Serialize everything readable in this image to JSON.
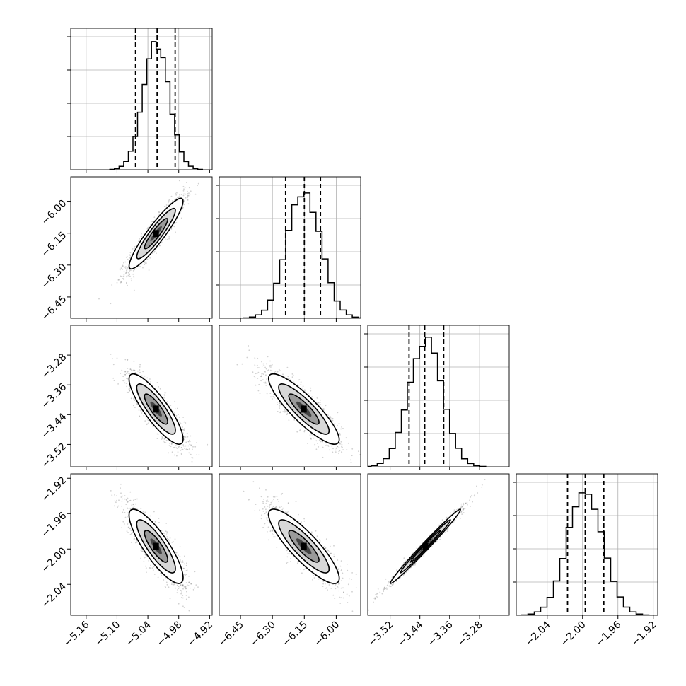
{
  "chart_data": {
    "type": "corner",
    "grid": true,
    "colors": {
      "ink": "#000000",
      "grid": "#b0b0b0",
      "scatter": "#7a7a7a"
    },
    "parameters": [
      {
        "range": [
          -5.19,
          -4.915
        ],
        "ticks": [
          "-5.16",
          "-5.10",
          "-5.04",
          "-4.98",
          "-4.92"
        ],
        "quantiles": [
          -5.064,
          -5.022,
          -4.987
        ],
        "mean": -5.024,
        "sd": 0.025
      },
      {
        "range": [
          -6.55,
          -5.885
        ],
        "ticks": [
          "-6.45",
          "-6.30",
          "-6.15",
          "-6.00"
        ],
        "quantiles": [
          -6.238,
          -6.15,
          -6.074
        ],
        "mean": -6.152,
        "sd": 0.079
      },
      {
        "range": [
          -3.58,
          -3.2
        ],
        "ticks": [
          "-3.52",
          "-3.44",
          "-3.36",
          "-3.28"
        ],
        "quantiles": [
          -3.469,
          -3.427,
          -3.376
        ],
        "mean": -3.425,
        "sd": 0.045
      },
      {
        "range": [
          -2.075,
          -1.915
        ],
        "ticks": [
          "-2.04",
          "-2.00",
          "-1.96",
          "-1.92"
        ],
        "quantiles": [
          -2.017,
          -1.997,
          -1.976
        ],
        "mean": -1.997,
        "sd": 0.02
      }
    ],
    "correlations": {
      "1-0": 0.92,
      "2-0": -0.85,
      "2-1": -0.87,
      "3-0": -0.84,
      "3-1": -0.86,
      "3-2": 0.99
    },
    "histogram_bins": 20
  }
}
